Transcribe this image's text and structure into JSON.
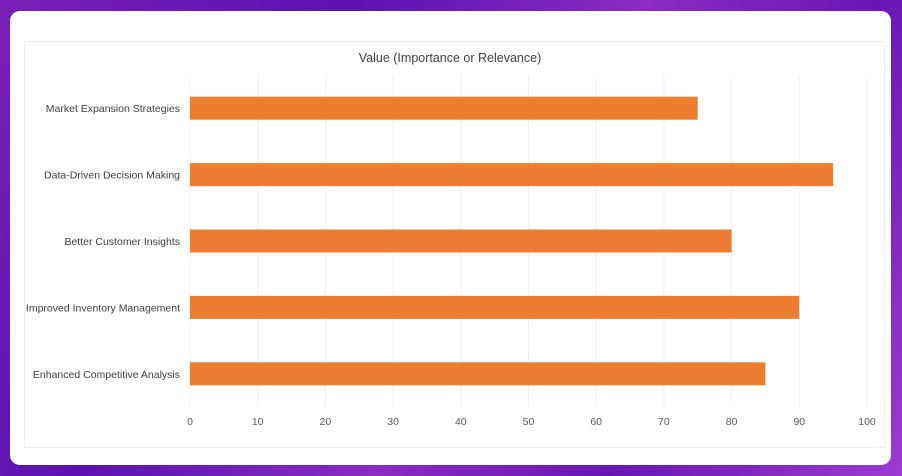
{
  "chart_data": {
    "type": "bar",
    "orientation": "horizontal",
    "title": "Value (Importance or Relevance)",
    "categories": [
      "Market Expansion Strategies",
      "Data-Driven Decision Making",
      "Better Customer Insights",
      "Improved Inventory Management",
      "Enhanced Competitive Analysis"
    ],
    "values": [
      75,
      95,
      80,
      90,
      85
    ],
    "xlim": [
      0,
      100
    ],
    "xticks": [
      0,
      10,
      20,
      30,
      40,
      50,
      60,
      70,
      80,
      90,
      100
    ],
    "grid": true,
    "legend": "none",
    "bar_color": "#ED7D31",
    "grid_color": "#F0F0F0"
  }
}
